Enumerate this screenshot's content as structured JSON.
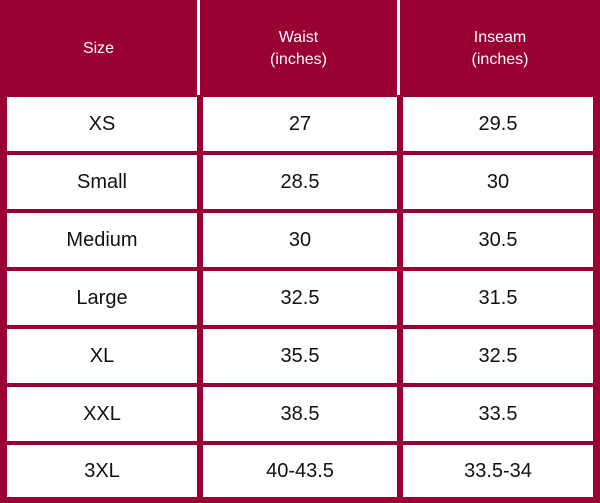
{
  "table": {
    "headers": [
      "Size",
      "Waist\n(inches)",
      "Inseam\n(inches)"
    ],
    "rows": [
      [
        "XS",
        "27",
        "29.5"
      ],
      [
        "Small",
        "28.5",
        "30"
      ],
      [
        "Medium",
        "30",
        "30.5"
      ],
      [
        "Large",
        "32.5",
        "31.5"
      ],
      [
        "XL",
        "35.5",
        "32.5"
      ],
      [
        "XXL",
        "38.5",
        "33.5"
      ],
      [
        "3XL",
        "40-43.5",
        "33.5-34"
      ]
    ]
  },
  "colors": {
    "header_background": "#990033",
    "header_text": "#ffffff",
    "cell_background": "#ffffff",
    "cell_text": "#111111"
  }
}
